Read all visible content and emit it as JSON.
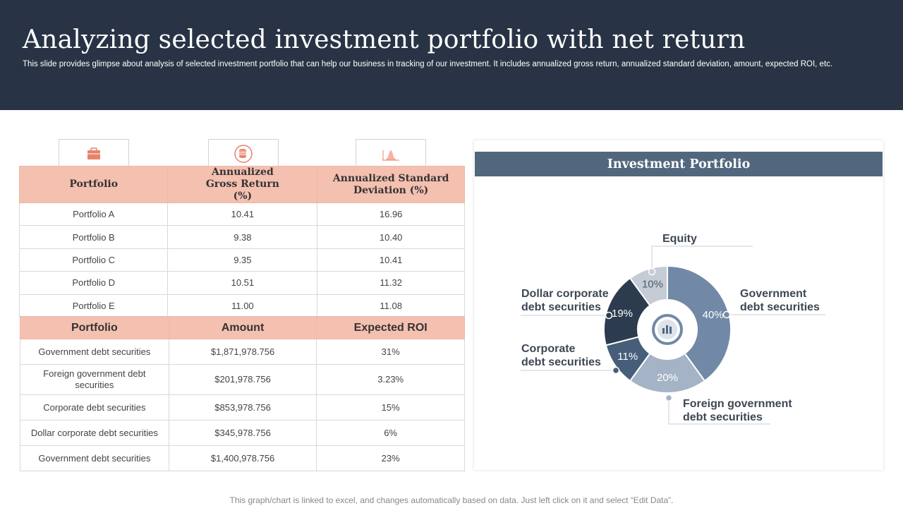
{
  "header": {
    "title": "Analyzing selected investment portfolio with net return",
    "subtitle": "This slide provides glimpse about analysis of selected investment portfolio that can help our business in tracking of our investment. It includes annualized gross return, annualized standard deviation, amount, expected ROI, etc."
  },
  "icons": [
    "briefcase-icon",
    "coin-stack-icon",
    "bell-curve-icon"
  ],
  "returns_table": {
    "headers": [
      "Portfolio",
      "Annualized Gross Return (%)",
      "Annualized Standard Deviation (%)"
    ],
    "rows": [
      [
        "Portfolio A",
        "10.41",
        "16.96"
      ],
      [
        "Portfolio B",
        "9.38",
        "10.40"
      ],
      [
        "Portfolio C",
        "9.35",
        "10.41"
      ],
      [
        "Portfolio D",
        "10.51",
        "11.32"
      ],
      [
        "Portfolio E",
        "11.00",
        "11.08"
      ]
    ]
  },
  "amount_table": {
    "headers": [
      "Portfolio",
      "Amount",
      "Expected ROI"
    ],
    "rows": [
      [
        "Government  debt securities",
        "$1,871,978.756",
        "31%"
      ],
      [
        "Foreign government  debt securities",
        "$201,978.756",
        "3.23%"
      ],
      [
        "Corporate  debt securities",
        "$853,978.756",
        "15%"
      ],
      [
        "Dollar corporate  debt securities",
        "$345,978.756",
        "6%"
      ],
      [
        "Government  debt securities",
        "$1,400,978.756",
        "23%"
      ]
    ]
  },
  "chart_data": {
    "type": "pie",
    "title": "Investment Portfolio",
    "categories": [
      "Government debt securities",
      "Foreign government debt securities",
      "Corporate debt securities",
      "Dollar corporate debt securities",
      "Equity"
    ],
    "values": [
      40,
      20,
      11,
      19,
      10
    ],
    "value_labels": [
      "40%",
      "20%",
      "11%",
      "19%",
      "10%"
    ],
    "label_lines": [
      [
        "Government",
        "debt securities"
      ],
      [
        "Foreign government",
        "debt securities"
      ],
      [
        "Corporate",
        "debt securities"
      ],
      [
        "Dollar corporate",
        "debt securities"
      ],
      [
        "Equity"
      ]
    ],
    "colors": [
      "#7189a6",
      "#a4b3c5",
      "#465e79",
      "#2d3b4e",
      "#c5ccd6"
    ],
    "center_icon": "chart-report-icon"
  },
  "footer": {
    "note": "This graph/chart is linked to excel,  and changes automatically based on data. Just left click on it and select “Edit Data”."
  }
}
